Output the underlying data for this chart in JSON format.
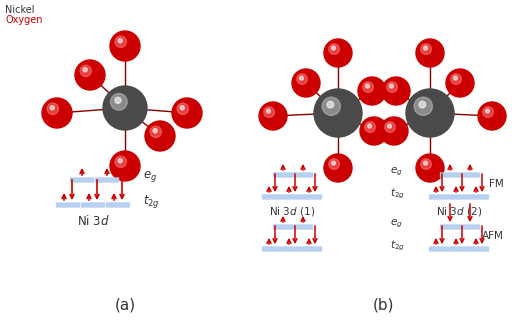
{
  "bg_color": "#ffffff",
  "nickel_color": "#4a4a4a",
  "oxygen_color": "#cc0000",
  "level_color": "#b8d0f0",
  "legend_nickel": "Nickel",
  "legend_oxygen": "Oxygen",
  "eg_label": "$e_g$",
  "t2g_label": "$t_{2g}$",
  "ni3d_label": "Ni 3$d$",
  "ni3d1_label": "Ni 3$d$ (1)",
  "ni3d2_label": "Ni 3$d$ (2)",
  "fm_label": "FM",
  "afm_label": "AFM",
  "label_a": "(a)",
  "label_b": "(b)"
}
